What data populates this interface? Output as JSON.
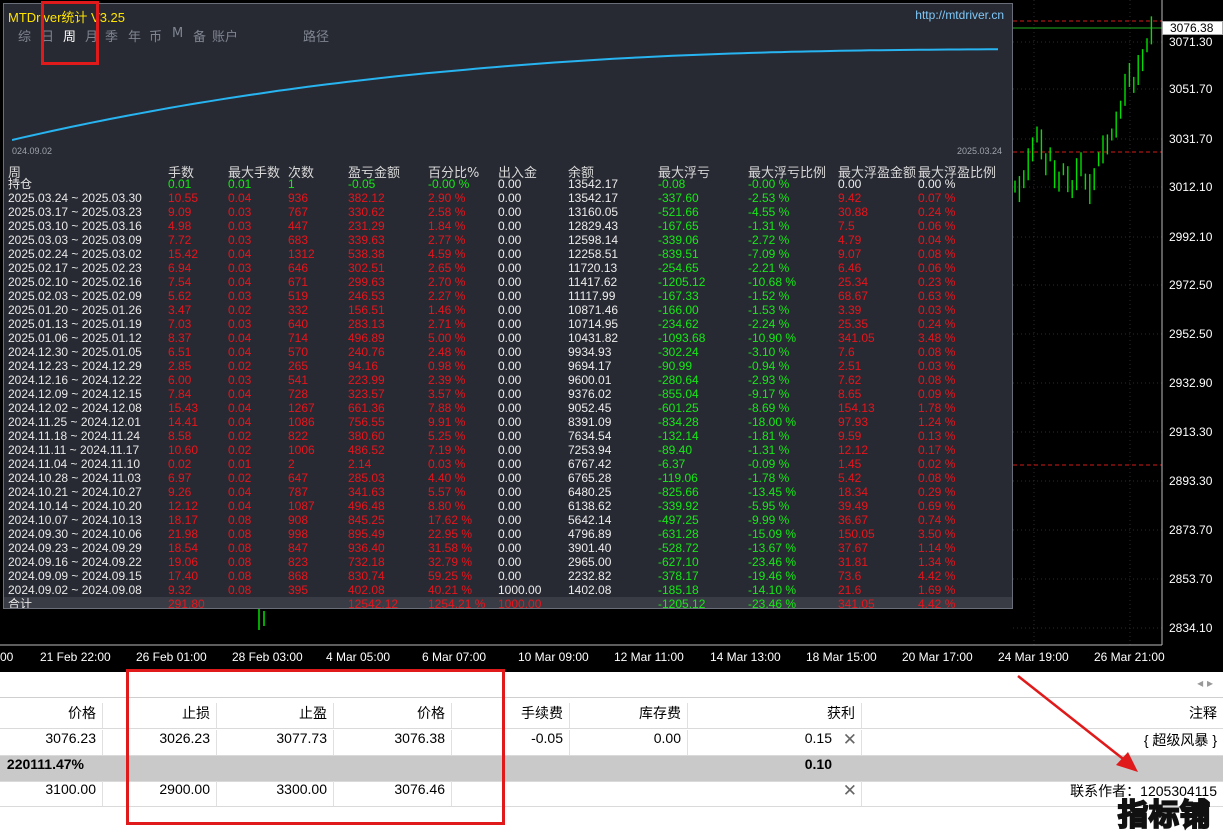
{
  "colors": {
    "background": "#000000",
    "candle": "#00e000",
    "accent_line": "#27b4f0",
    "profit": "#16e816",
    "loss": "#e8141c",
    "annotation": "#e01a1a"
  },
  "price_axis": {
    "ticks": [
      "3071.30",
      "3051.70",
      "3031.70",
      "3012.10",
      "2992.10",
      "2972.50",
      "2952.50",
      "2932.90",
      "2913.30",
      "2893.30",
      "2873.70",
      "2853.70",
      "2834.10"
    ],
    "current": "3076.38"
  },
  "time_axis": [
    "00",
    "21 Feb 22:00",
    "26 Feb 01:00",
    "28 Feb 03:00",
    "4 Mar 05:00",
    "6 Mar 07:00",
    "10 Mar 09:00",
    "12 Mar 11:00",
    "14 Mar 13:00",
    "18 Mar 15:00",
    "20 Mar 17:00",
    "24 Mar 19:00",
    "26 Mar 21:00"
  ],
  "panel": {
    "title": "MTDriver统计 V3.25",
    "url": "http://mtdriver.cn",
    "menu": [
      "综",
      "日",
      "周",
      "月",
      "季",
      "年",
      "币",
      "M",
      "备",
      "账户",
      "路径"
    ],
    "selected_menu": "周",
    "curve_start": "024.09.02",
    "curve_end": "2025.03.24",
    "headers": [
      "周",
      "手数",
      "最大手数",
      "次数",
      "盈亏金额",
      "百分比%",
      "出入金",
      "余额",
      "最大浮亏",
      "最大浮亏比例",
      "最大浮盈金额",
      "最大浮盈比例"
    ],
    "holding": {
      "label": "持仓",
      "lots": "0.01",
      "max_lots": "0.01",
      "count": "1",
      "pnl": "-0.05",
      "pct": "-0.00 %",
      "flow": "0.00",
      "balance": "13542.17",
      "max_dd": "-0.08",
      "max_dd_pct": "-0.00 %",
      "max_fp": "0.00",
      "max_fp_pct": "0.00 %"
    },
    "rows": [
      [
        "2025.03.24 ~ 2025.03.30",
        "10.55",
        "0.04",
        "936",
        "382.12",
        "2.90 %",
        "0.00",
        "13542.17",
        "-337.60",
        "-2.53 %",
        "9.42",
        "0.07 %"
      ],
      [
        "2025.03.17 ~ 2025.03.23",
        "9.09",
        "0.03",
        "767",
        "330.62",
        "2.58 %",
        "0.00",
        "13160.05",
        "-521.66",
        "-4.55 %",
        "30.88",
        "0.24 %"
      ],
      [
        "2025.03.10 ~ 2025.03.16",
        "4.98",
        "0.03",
        "447",
        "231.29",
        "1.84 %",
        "0.00",
        "12829.43",
        "-167.65",
        "-1.31 %",
        "7.5",
        "0.06 %"
      ],
      [
        "2025.03.03 ~ 2025.03.09",
        "7.72",
        "0.03",
        "683",
        "339.63",
        "2.77 %",
        "0.00",
        "12598.14",
        "-339.06",
        "-2.72 %",
        "4.79",
        "0.04 %"
      ],
      [
        "2025.02.24 ~ 2025.03.02",
        "15.42",
        "0.04",
        "1312",
        "538.38",
        "4.59 %",
        "0.00",
        "12258.51",
        "-839.51",
        "-7.09 %",
        "9.07",
        "0.08 %"
      ],
      [
        "2025.02.17 ~ 2025.02.23",
        "6.94",
        "0.03",
        "646",
        "302.51",
        "2.65 %",
        "0.00",
        "11720.13",
        "-254.65",
        "-2.21 %",
        "6.46",
        "0.06 %"
      ],
      [
        "2025.02.10 ~ 2025.02.16",
        "7.54",
        "0.04",
        "671",
        "299.63",
        "2.70 %",
        "0.00",
        "11417.62",
        "-1205.12",
        "-10.68 %",
        "25.34",
        "0.23 %"
      ],
      [
        "2025.02.03 ~ 2025.02.09",
        "5.62",
        "0.03",
        "519",
        "246.53",
        "2.27 %",
        "0.00",
        "11117.99",
        "-167.33",
        "-1.52 %",
        "68.67",
        "0.63 %"
      ],
      [
        "2025.01.20 ~ 2025.01.26",
        "3.47",
        "0.02",
        "332",
        "156.51",
        "1.46 %",
        "0.00",
        "10871.46",
        "-166.00",
        "-1.53 %",
        "3.39",
        "0.03 %"
      ],
      [
        "2025.01.13 ~ 2025.01.19",
        "7.03",
        "0.03",
        "640",
        "283.13",
        "2.71 %",
        "0.00",
        "10714.95",
        "-234.62",
        "-2.24 %",
        "25.35",
        "0.24 %"
      ],
      [
        "2025.01.06 ~ 2025.01.12",
        "8.37",
        "0.04",
        "714",
        "496.89",
        "5.00 %",
        "0.00",
        "10431.82",
        "-1093.68",
        "-10.90 %",
        "341.05",
        "3.48 %"
      ],
      [
        "2024.12.30 ~ 2025.01.05",
        "6.51",
        "0.04",
        "570",
        "240.76",
        "2.48 %",
        "0.00",
        "9934.93",
        "-302.24",
        "-3.10 %",
        "7.6",
        "0.08 %"
      ],
      [
        "2024.12.23 ~ 2024.12.29",
        "2.85",
        "0.02",
        "265",
        "94.16",
        "0.98 %",
        "0.00",
        "9694.17",
        "-90.99",
        "-0.94 %",
        "2.51",
        "0.03 %"
      ],
      [
        "2024.12.16 ~ 2024.12.22",
        "6.00",
        "0.03",
        "541",
        "223.99",
        "2.39 %",
        "0.00",
        "9600.01",
        "-280.64",
        "-2.93 %",
        "7.62",
        "0.08 %"
      ],
      [
        "2024.12.09 ~ 2024.12.15",
        "7.84",
        "0.04",
        "728",
        "323.57",
        "3.57 %",
        "0.00",
        "9376.02",
        "-855.04",
        "-9.17 %",
        "8.65",
        "0.09 %"
      ],
      [
        "2024.12.02 ~ 2024.12.08",
        "15.43",
        "0.04",
        "1267",
        "661.36",
        "7.88 %",
        "0.00",
        "9052.45",
        "-601.25",
        "-8.69 %",
        "154.13",
        "1.78 %"
      ],
      [
        "2024.11.25 ~ 2024.12.01",
        "14.41",
        "0.04",
        "1086",
        "756.55",
        "9.91 %",
        "0.00",
        "8391.09",
        "-834.28",
        "-18.00 %",
        "97.93",
        "1.24 %"
      ],
      [
        "2024.11.18 ~ 2024.11.24",
        "8.58",
        "0.02",
        "822",
        "380.60",
        "5.25 %",
        "0.00",
        "7634.54",
        "-132.14",
        "-1.81 %",
        "9.59",
        "0.13 %"
      ],
      [
        "2024.11.11 ~ 2024.11.17",
        "10.60",
        "0.02",
        "1006",
        "486.52",
        "7.19 %",
        "0.00",
        "7253.94",
        "-89.40",
        "-1.31 %",
        "12.12",
        "0.17 %"
      ],
      [
        "2024.11.04 ~ 2024.11.10",
        "0.02",
        "0.01",
        "2",
        "2.14",
        "0.03 %",
        "0.00",
        "6767.42",
        "-6.37",
        "-0.09 %",
        "1.45",
        "0.02 %"
      ],
      [
        "2024.10.28 ~ 2024.11.03",
        "6.97",
        "0.02",
        "647",
        "285.03",
        "4.40 %",
        "0.00",
        "6765.28",
        "-119.06",
        "-1.78 %",
        "5.42",
        "0.08 %"
      ],
      [
        "2024.10.21 ~ 2024.10.27",
        "9.26",
        "0.04",
        "787",
        "341.63",
        "5.57 %",
        "0.00",
        "6480.25",
        "-825.66",
        "-13.45 %",
        "18.34",
        "0.29 %"
      ],
      [
        "2024.10.14 ~ 2024.10.20",
        "12.12",
        "0.04",
        "1087",
        "496.48",
        "8.80 %",
        "0.00",
        "6138.62",
        "-339.92",
        "-5.95 %",
        "39.49",
        "0.69 %"
      ],
      [
        "2024.10.07 ~ 2024.10.13",
        "18.17",
        "0.08",
        "908",
        "845.25",
        "17.62 %",
        "0.00",
        "5642.14",
        "-497.25",
        "-9.99 %",
        "36.67",
        "0.74 %"
      ],
      [
        "2024.09.30 ~ 2024.10.06",
        "21.98",
        "0.08",
        "998",
        "895.49",
        "22.95 %",
        "0.00",
        "4796.89",
        "-631.28",
        "-15.09 %",
        "150.05",
        "3.50 %"
      ],
      [
        "2024.09.23 ~ 2024.09.29",
        "18.54",
        "0.08",
        "847",
        "936.40",
        "31.58 %",
        "0.00",
        "3901.40",
        "-528.72",
        "-13.67 %",
        "37.67",
        "1.14 %"
      ],
      [
        "2024.09.16 ~ 2024.09.22",
        "19.06",
        "0.08",
        "823",
        "732.18",
        "32.79 %",
        "0.00",
        "2965.00",
        "-627.10",
        "-23.46 %",
        "31.81",
        "1.34 %"
      ],
      [
        "2024.09.09 ~ 2024.09.15",
        "17.40",
        "0.08",
        "868",
        "830.74",
        "59.25 %",
        "0.00",
        "2232.82",
        "-378.17",
        "-19.46 %",
        "73.6",
        "4.42 %"
      ],
      [
        "2024.09.02 ~ 2024.09.08",
        "9.32",
        "0.08",
        "395",
        "402.08",
        "40.21 %",
        "1000.00",
        "1402.08",
        "-185.18",
        "-14.10 %",
        "21.6",
        "1.69 %"
      ]
    ],
    "total": {
      "label": "合计",
      "lots": "291.80",
      "pnl": "12542.12",
      "pct": "1254.21 %",
      "flow": "1000.00",
      "max_dd": "-1205.12",
      "max_dd_pct": "-23.46 %",
      "max_fp": "341.05",
      "max_fp_pct": "4.42 %"
    }
  },
  "terminal": {
    "headers": {
      "price": "价格",
      "sl": "止损",
      "tp": "止盈",
      "price2": "价格",
      "commission": "手续费",
      "swap": "库存费",
      "profit": "获利",
      "comment": "注释"
    },
    "row1": {
      "price": "3076.23",
      "sl": "3026.23",
      "tp": "3077.73",
      "price2": "3076.38",
      "commission": "-0.05",
      "swap": "0.00",
      "profit": "0.15",
      "comment": "{ 超级风暴 }"
    },
    "row2": {
      "pct": "220111.47%",
      "profit": "0.10"
    },
    "row3": {
      "price": "3100.00",
      "sl": "2900.00",
      "tp": "3300.00",
      "price2": "3076.46",
      "comment": "联系作者：1205304115"
    }
  },
  "watermark": "指标铺"
}
